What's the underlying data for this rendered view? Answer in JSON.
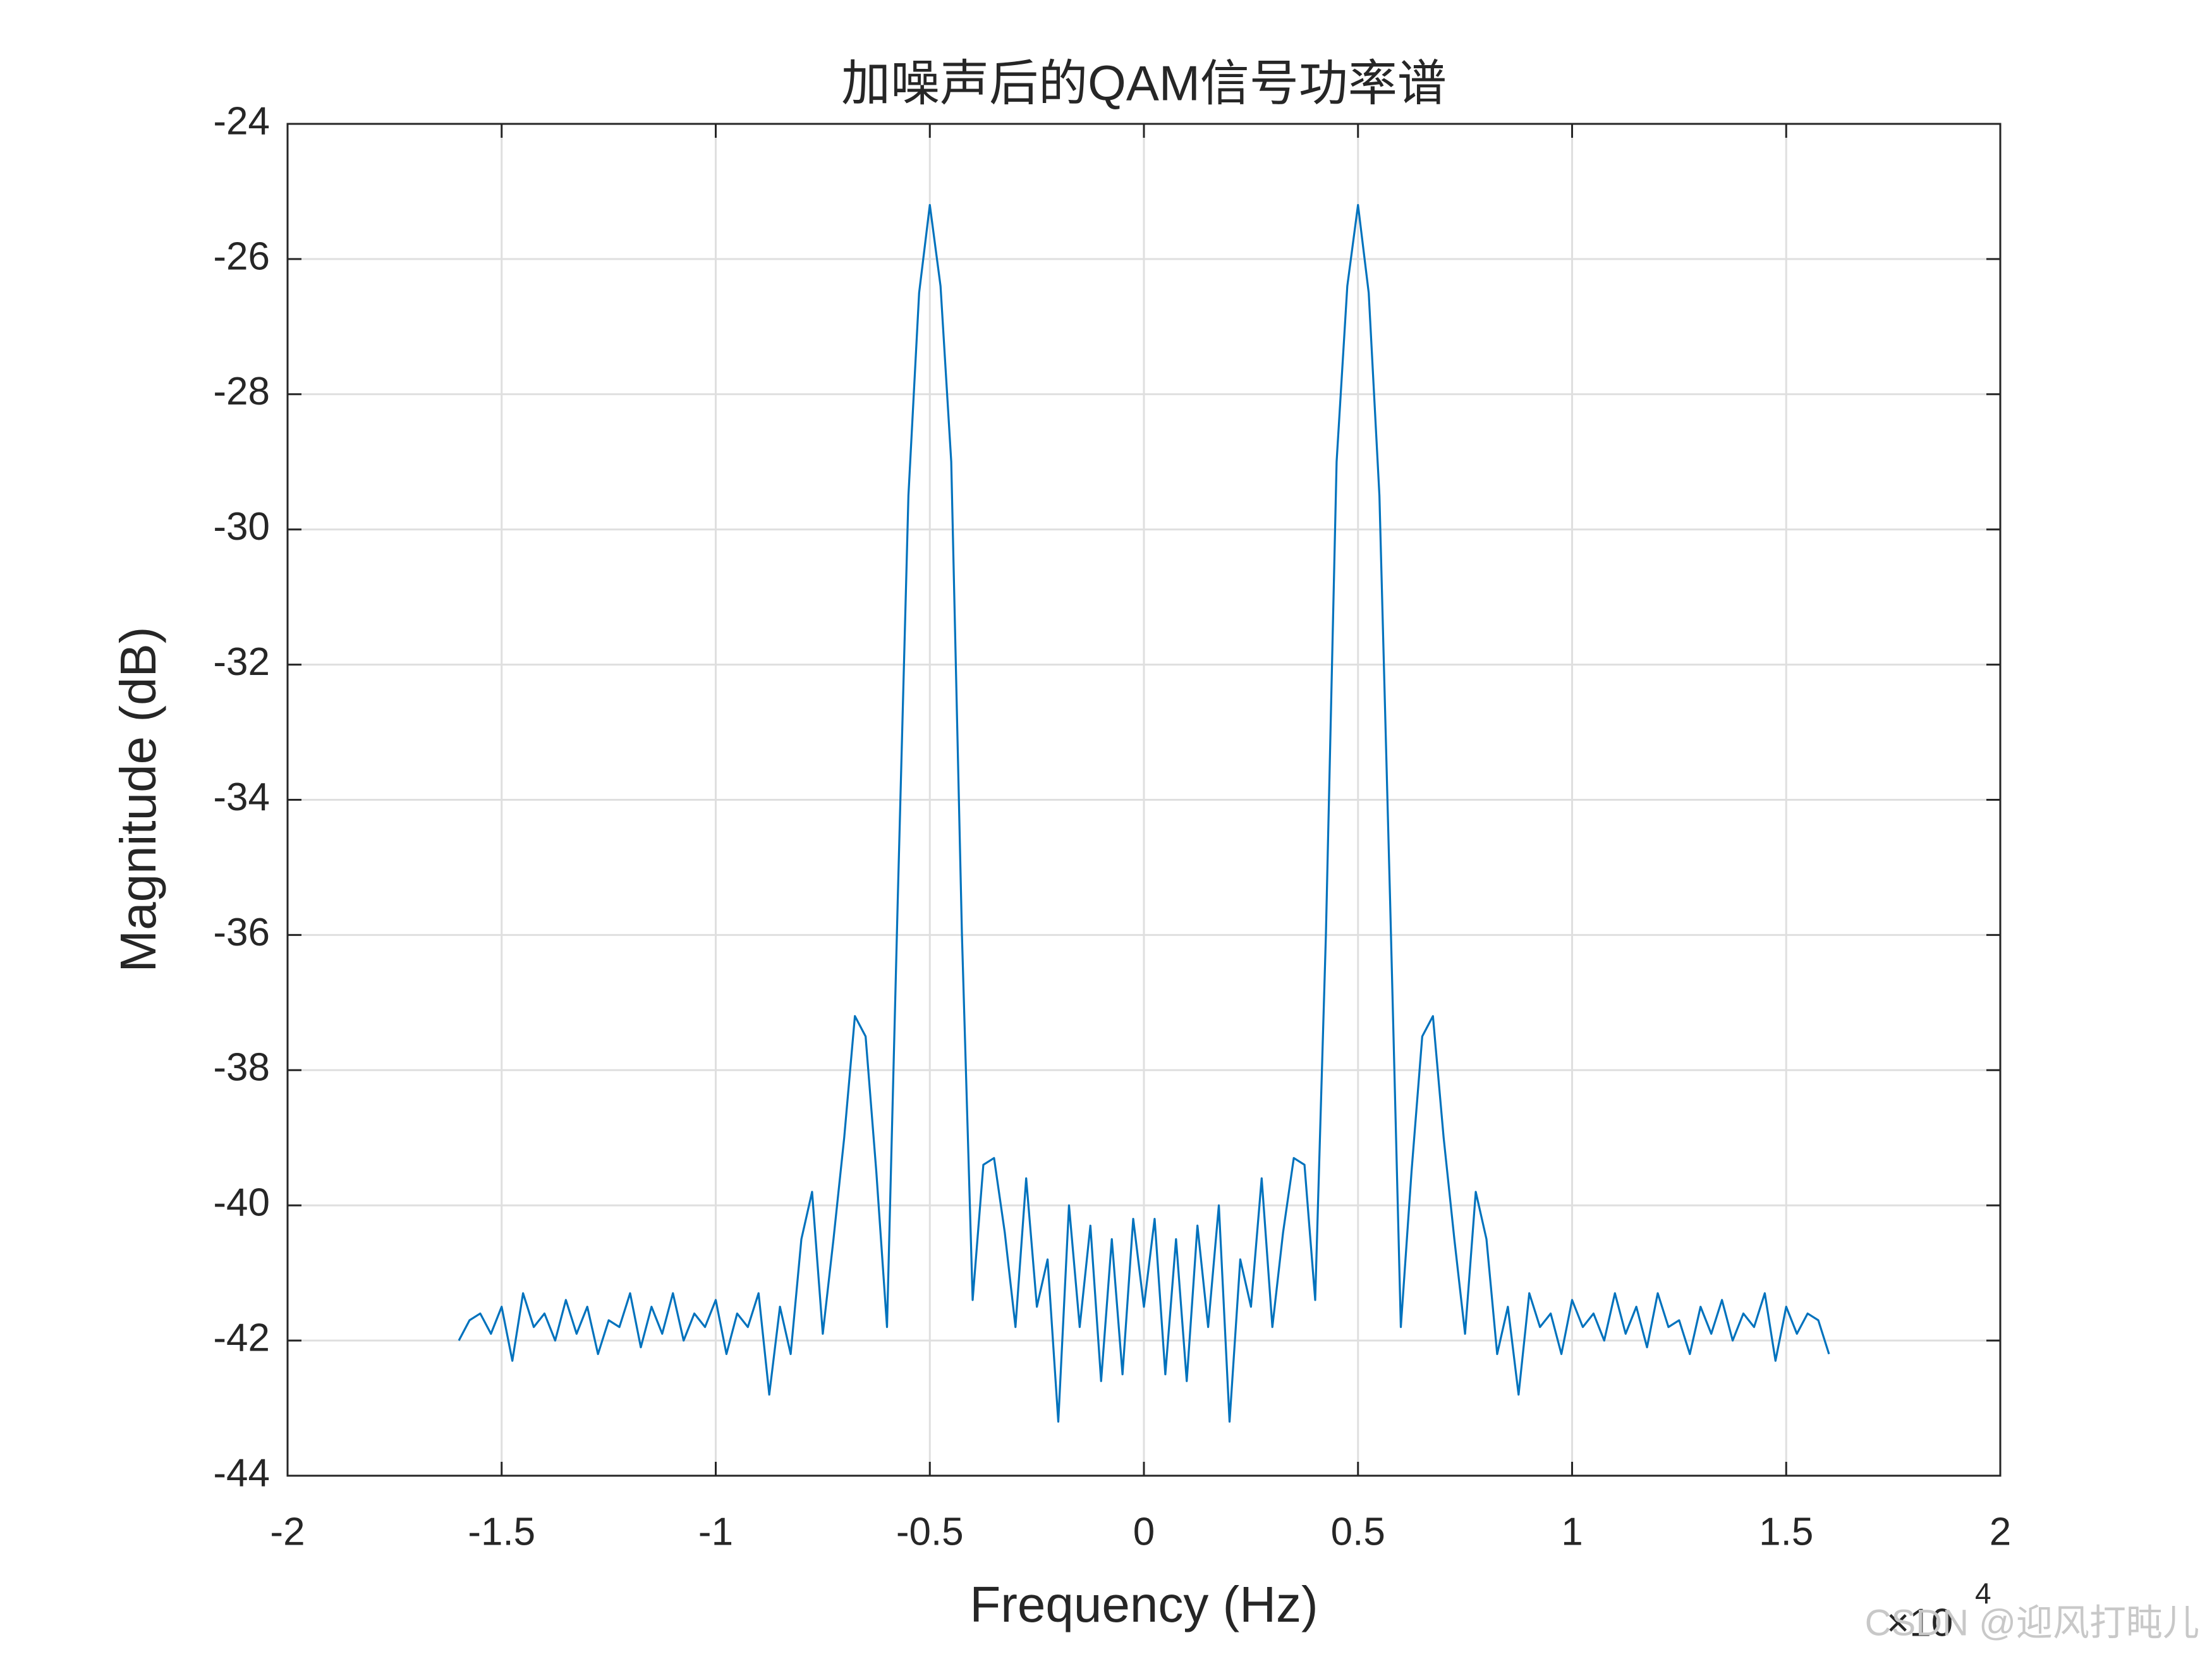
{
  "chart_data": {
    "type": "line",
    "title": "加噪声后的QAM信号功率谱",
    "x_label": "Frequency (Hz)",
    "y_label": "Magnitude (dB)",
    "x_multiplier": {
      "base": "×10",
      "exponent": "4"
    },
    "watermark": "CSDN @迎风打盹儿",
    "color": "#0072bd",
    "grid": true,
    "xlim": [
      -20000,
      20000
    ],
    "ylim": [
      -44,
      -24
    ],
    "xticks": [
      {
        "value": -20000,
        "label": "-2"
      },
      {
        "value": -15000,
        "label": "-1.5"
      },
      {
        "value": -10000,
        "label": "-1"
      },
      {
        "value": -5000,
        "label": "-0.5"
      },
      {
        "value": 0,
        "label": "0"
      },
      {
        "value": 5000,
        "label": "0.5"
      },
      {
        "value": 10000,
        "label": "1"
      },
      {
        "value": 15000,
        "label": "1.5"
      },
      {
        "value": 20000,
        "label": "2"
      }
    ],
    "yticks": [
      -44,
      -42,
      -40,
      -38,
      -36,
      -34,
      -32,
      -30,
      -28,
      -26,
      -24
    ],
    "x": [
      -16000,
      -15750,
      -15500,
      -15250,
      -15000,
      -14750,
      -14500,
      -14250,
      -14000,
      -13750,
      -13500,
      -13250,
      -13000,
      -12750,
      -12500,
      -12250,
      -12000,
      -11750,
      -11500,
      -11250,
      -11000,
      -10750,
      -10500,
      -10250,
      -10000,
      -9750,
      -9500,
      -9250,
      -9000,
      -8750,
      -8500,
      -8250,
      -8000,
      -7750,
      -7500,
      -7250,
      -7000,
      -6750,
      -6500,
      -6250,
      -6000,
      -5750,
      -5500,
      -5250,
      -5000,
      -4750,
      -4500,
      -4250,
      -4000,
      -3750,
      -3500,
      -3250,
      -3000,
      -2750,
      -2500,
      -2250,
      -2000,
      -1750,
      -1500,
      -1250,
      -1000,
      -750,
      -500,
      -250,
      0,
      250,
      500,
      750,
      1000,
      1250,
      1500,
      1750,
      2000,
      2250,
      2500,
      2750,
      3000,
      3250,
      3500,
      3750,
      4000,
      4250,
      4500,
      4750,
      5000,
      5250,
      5500,
      5750,
      6000,
      6250,
      6500,
      6750,
      7000,
      7250,
      7500,
      7750,
      8000,
      8250,
      8500,
      8750,
      9000,
      9250,
      9500,
      9750,
      10000,
      10250,
      10500,
      10750,
      11000,
      11250,
      11500,
      11750,
      12000,
      12250,
      12500,
      12750,
      13000,
      13250,
      13500,
      13750,
      14000,
      14250,
      14500,
      14750,
      15000,
      15250,
      15500,
      15750,
      16000
    ],
    "values": [
      -42.0,
      -41.7,
      -41.6,
      -41.9,
      -41.5,
      -42.3,
      -41.3,
      -41.8,
      -41.6,
      -42.0,
      -41.4,
      -41.9,
      -41.5,
      -42.2,
      -41.7,
      -41.8,
      -41.3,
      -42.1,
      -41.5,
      -41.9,
      -41.3,
      -42,
      -41.6,
      -41.8,
      -41.4,
      -42.2,
      -41.6,
      -41.8,
      -41.3,
      -42.8,
      -41.5,
      -42.2,
      -40.5,
      -39.8,
      -41.9,
      -40.5,
      -39,
      -37.2,
      -37.5,
      -39.5,
      -41.8,
      -35.5,
      -29.5,
      -26.5,
      -25.2,
      -26.4,
      -29,
      -36,
      -41.4,
      -39.4,
      -39.3,
      -40.4,
      -41.8,
      -39.6,
      -41.5,
      -40.8,
      -43.2,
      -40.0,
      -41.8,
      -40.3,
      -42.6,
      -40.5,
      -42.5,
      -40.2,
      -41.5,
      -40.2,
      -42.5,
      -40.5,
      -42.6,
      -40.3,
      -41.8,
      -40.0,
      -43.2,
      -40.8,
      -41.5,
      -39.6,
      -41.8,
      -40.4,
      -39.3,
      -39.4,
      -41.4,
      -36,
      -29,
      -26.4,
      -25.2,
      -26.5,
      -29.5,
      -35.5,
      -41.8,
      -39.5,
      -37.5,
      -37.2,
      -39,
      -40.5,
      -41.9,
      -39.8,
      -40.5,
      -42.2,
      -41.5,
      -42.8,
      -41.3,
      -41.8,
      -41.6,
      -42.2,
      -41.4,
      -41.8,
      -41.6,
      -42,
      -41.3,
      -41.9,
      -41.5,
      -42.1,
      -41.3,
      -41.8,
      -41.7,
      -42.2,
      -41.5,
      -41.9,
      -41.4,
      -42.0,
      -41.6,
      -41.8,
      -41.3,
      -42.3,
      -41.5,
      -41.9,
      -41.6,
      -41.7,
      -42.2
    ]
  }
}
